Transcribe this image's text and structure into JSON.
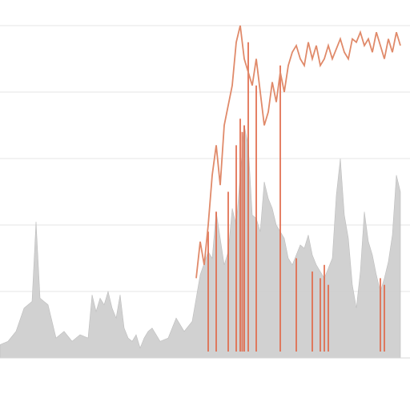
{
  "chart_data": {
    "type": "area",
    "title": "",
    "xlabel": "",
    "ylabel": "",
    "legend": "none",
    "grid": true,
    "xlim": [
      0,
      100
    ],
    "ylim": [
      0,
      100
    ],
    "y_ticks": [
      0,
      20,
      40,
      60,
      80,
      100
    ],
    "series": [
      {
        "kind": "area",
        "color": "#c9c9c9",
        "x": [
          0,
          2,
          4,
          6,
          8,
          9,
          10,
          11,
          12,
          14,
          16,
          18,
          20,
          22,
          23,
          24,
          25,
          26,
          27,
          28,
          29,
          30,
          31,
          32,
          33,
          34,
          35,
          36,
          37,
          38,
          40,
          42,
          44,
          46,
          48,
          50,
          52,
          53,
          54,
          55,
          56,
          57,
          58,
          59,
          60,
          61,
          62,
          63,
          64,
          65,
          66,
          67,
          68,
          69,
          70,
          71,
          72,
          73,
          74,
          75,
          76,
          77,
          78,
          79,
          80,
          81,
          82,
          83,
          84,
          85,
          86,
          87,
          88,
          89,
          90,
          91,
          92,
          93,
          94,
          95,
          96,
          97,
          98,
          99,
          100
        ],
        "y": [
          4,
          5,
          8,
          15,
          17,
          41,
          18,
          17,
          16,
          6,
          8,
          5,
          7,
          6,
          19,
          14,
          18,
          16,
          20,
          15,
          12,
          19,
          9,
          6,
          5,
          7,
          3,
          6,
          8,
          9,
          5,
          6,
          12,
          8,
          11,
          25,
          32,
          30,
          44,
          36,
          28,
          32,
          45,
          40,
          55,
          70,
          64,
          43,
          42,
          38,
          53,
          48,
          45,
          40,
          38,
          36,
          30,
          28,
          31,
          34,
          33,
          37,
          31,
          28,
          26,
          24,
          27,
          30,
          49,
          60,
          43,
          36,
          22,
          15,
          26,
          44,
          35,
          31,
          25,
          20,
          24,
          29,
          37,
          55,
          50
        ]
      },
      {
        "kind": "line",
        "color": "#e08a6a",
        "x": [
          49,
          50,
          51,
          52,
          53,
          54,
          55,
          56,
          57,
          58,
          59,
          60,
          61,
          62,
          63,
          64,
          65,
          66,
          67,
          68,
          69,
          70,
          71,
          72,
          73,
          74,
          75,
          76,
          77,
          78,
          79,
          80,
          81,
          82,
          83,
          84,
          85,
          86,
          87,
          88,
          89,
          90,
          91,
          92,
          93,
          94,
          95,
          96,
          97,
          98,
          99,
          100
        ],
        "y": [
          24,
          35,
          28,
          40,
          55,
          64,
          52,
          70,
          76,
          82,
          95,
          100,
          90,
          86,
          82,
          90,
          80,
          70,
          74,
          83,
          77,
          86,
          80,
          88,
          92,
          94,
          90,
          88,
          95,
          90,
          94,
          88,
          90,
          94,
          90,
          93,
          96,
          92,
          90,
          96,
          95,
          98,
          94,
          96,
          92,
          98,
          94,
          90,
          96,
          92,
          98,
          94
        ]
      }
    ],
    "spikes": {
      "color": "#e06a4a",
      "x": [
        52,
        54,
        57,
        59,
        60,
        60.5,
        61,
        62,
        64,
        70,
        74,
        78,
        80,
        81,
        82,
        95,
        96
      ],
      "y": [
        38,
        44,
        50,
        64,
        72,
        68,
        70,
        95,
        82,
        88,
        30,
        26,
        24,
        28,
        22,
        24,
        22
      ]
    }
  }
}
